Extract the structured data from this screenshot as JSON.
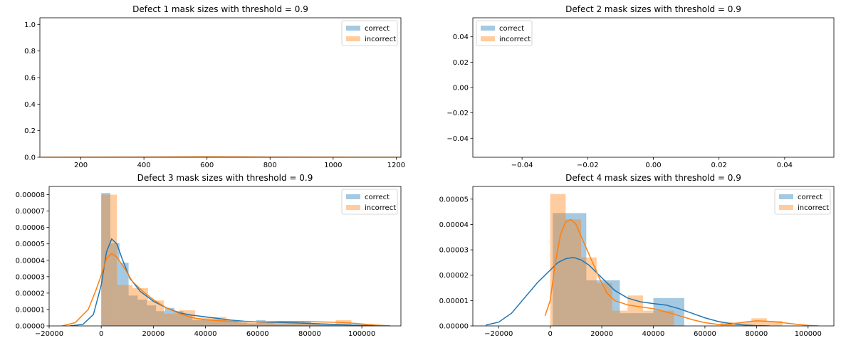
{
  "colors": {
    "correct": "#1f77b4",
    "incorrect": "#ff7f0e"
  },
  "legend": {
    "correct_label": "correct",
    "incorrect_label": "incorrect"
  },
  "chart_data": [
    {
      "type": "histogram",
      "title": "Defect 1 mask sizes with threshold = 0.9",
      "xlim": [
        70,
        1215
      ],
      "ylim": [
        0,
        1.05
      ],
      "xticks": [
        200,
        400,
        600,
        800,
        1000,
        1200
      ],
      "xtick_labels": [
        "200",
        "400",
        "600",
        "800",
        "1000",
        "1200"
      ],
      "yticks": [
        0.0,
        0.2,
        0.4,
        0.6,
        0.8,
        1.0
      ],
      "ytick_labels": [
        "0.0",
        "0.2",
        "0.4",
        "0.6",
        "0.8",
        "1.0"
      ],
      "legend_position": "top-right",
      "series": [
        {
          "name": "correct",
          "bins": [],
          "kde": []
        },
        {
          "name": "incorrect",
          "bins": [],
          "kde": [
            [
              75,
              0.0001
            ],
            [
              200,
              0.0005
            ],
            [
              400,
              0.0015
            ],
            [
              600,
              0.003
            ],
            [
              700,
              0.0025
            ],
            [
              800,
              0.0015
            ],
            [
              1000,
              0.0005
            ],
            [
              1215,
              0.0001
            ]
          ]
        }
      ]
    },
    {
      "type": "histogram",
      "title": "Defect 2 mask sizes with threshold = 0.9",
      "xlim": [
        -0.055,
        0.055
      ],
      "ylim": [
        -0.055,
        0.055
      ],
      "xticks": [
        -0.04,
        -0.02,
        0.0,
        0.02,
        0.04
      ],
      "xtick_labels": [
        "−0.04",
        "−0.02",
        "0.00",
        "0.02",
        "0.04"
      ],
      "yticks": [
        -0.04,
        -0.02,
        0.0,
        0.02,
        0.04
      ],
      "ytick_labels": [
        "−0.04",
        "−0.02",
        "0.00",
        "0.02",
        "0.04"
      ],
      "legend_position": "top-left",
      "series": [
        {
          "name": "correct",
          "bins": [],
          "kde": []
        },
        {
          "name": "incorrect",
          "bins": [],
          "kde": []
        }
      ]
    },
    {
      "type": "histogram",
      "title": "Defect 3 mask sizes with threshold = 0.9",
      "xlim": [
        -20000,
        115000
      ],
      "ylim": [
        0,
        8.5e-05
      ],
      "xticks": [
        -20000,
        0,
        20000,
        40000,
        60000,
        80000,
        100000
      ],
      "xtick_labels": [
        "−20000",
        "0",
        "20000",
        "40000",
        "60000",
        "80000",
        "100000"
      ],
      "yticks": [
        0,
        1e-05,
        2e-05,
        3e-05,
        4e-05,
        5e-05,
        6e-05,
        7e-05,
        8e-05
      ],
      "ytick_labels": [
        "0.00000",
        "0.00001",
        "0.00002",
        "0.00003",
        "0.00004",
        "0.00005",
        "0.00006",
        "0.00007",
        "0.00008"
      ],
      "legend_position": "top-right",
      "series": [
        {
          "name": "correct",
          "bins": [
            [
              0,
              3500,
              8.1e-05
            ],
            [
              3500,
              7000,
              5.05e-05
            ],
            [
              7000,
              10500,
              3.85e-05
            ],
            [
              10500,
              14000,
              1.85e-05
            ],
            [
              14000,
              17500,
              1.6e-05
            ],
            [
              17500,
              21000,
              1.25e-05
            ],
            [
              21000,
              24500,
              9e-06
            ],
            [
              24500,
              28000,
              1.1e-05
            ],
            [
              28000,
              31500,
              9e-06
            ],
            [
              31500,
              35000,
              7e-06
            ],
            [
              35000,
              38500,
              3.5e-06
            ],
            [
              38500,
              42000,
              4e-06
            ],
            [
              42000,
              45500,
              4e-06
            ],
            [
              45500,
              49000,
              3.5e-06
            ],
            [
              49000,
              52500,
              2.5e-06
            ],
            [
              52500,
              56000,
              2e-06
            ],
            [
              56000,
              59500,
              1.5e-06
            ],
            [
              59500,
              63000,
              3.5e-06
            ],
            [
              63000,
              66500,
              2e-06
            ],
            [
              66500,
              70000,
              1.5e-06
            ],
            [
              70000,
              73500,
              1.5e-06
            ],
            [
              73500,
              77000,
              1.5e-06
            ],
            [
              77000,
              80500,
              2.5e-06
            ],
            [
              80500,
              84000,
              1e-06
            ],
            [
              84000,
              87500,
              1e-06
            ],
            [
              87500,
              91000,
              1e-06
            ],
            [
              91000,
              94500,
              1e-06
            ]
          ],
          "kde": [
            [
              -12000,
              0
            ],
            [
              -7000,
              1e-06
            ],
            [
              -3000,
              7e-06
            ],
            [
              0,
              2.5e-05
            ],
            [
              2000,
              4.5e-05
            ],
            [
              4000,
              5.3e-05
            ],
            [
              6000,
              5e-05
            ],
            [
              8000,
              4.1e-05
            ],
            [
              11000,
              2.9e-05
            ],
            [
              15000,
              2.1e-05
            ],
            [
              20000,
              1.5e-05
            ],
            [
              25000,
              1.1e-05
            ],
            [
              30000,
              8e-06
            ],
            [
              35000,
              6.5e-06
            ],
            [
              40000,
              5.5e-06
            ],
            [
              45000,
              4.5e-06
            ],
            [
              50000,
              3.5e-06
            ],
            [
              55000,
              2.8e-06
            ],
            [
              60000,
              2.5e-06
            ],
            [
              65000,
              2.2e-06
            ],
            [
              70000,
              2e-06
            ],
            [
              75000,
              1.8e-06
            ],
            [
              80000,
              1.5e-06
            ],
            [
              85000,
              1.2e-06
            ],
            [
              90000,
              9e-07
            ],
            [
              95000,
              6e-07
            ],
            [
              100000,
              3e-07
            ],
            [
              105000,
              1e-07
            ],
            [
              110000,
              0
            ]
          ]
        },
        {
          "name": "incorrect",
          "bins": [
            [
              0,
              6000,
              8e-05
            ],
            [
              6000,
              12000,
              2.5e-05
            ],
            [
              12000,
              18000,
              2.3e-05
            ],
            [
              18000,
              24000,
              1.55e-05
            ],
            [
              24000,
              30000,
              7.5e-06
            ],
            [
              30000,
              36000,
              9.5e-06
            ],
            [
              36000,
              42000,
              5e-06
            ],
            [
              42000,
              48000,
              5.5e-06
            ],
            [
              48000,
              54000,
              2.5e-06
            ],
            [
              54000,
              60000,
              2e-06
            ],
            [
              60000,
              66000,
              2.5e-06
            ],
            [
              66000,
              72000,
              2.5e-06
            ],
            [
              72000,
              78000,
              2.5e-06
            ],
            [
              78000,
              84000,
              1.5e-06
            ],
            [
              84000,
              90000,
              5e-07
            ],
            [
              90000,
              96000,
              3.5e-06
            ],
            [
              96000,
              102000,
              5e-07
            ]
          ],
          "kde": [
            [
              -15000,
              0
            ],
            [
              -10000,
              2e-06
            ],
            [
              -5000,
              1e-05
            ],
            [
              -2000,
              2.2e-05
            ],
            [
              0,
              3.1e-05
            ],
            [
              2000,
              4.1e-05
            ],
            [
              4000,
              4.4e-05
            ],
            [
              6000,
              4.2e-05
            ],
            [
              9000,
              3.5e-05
            ],
            [
              12000,
              2.7e-05
            ],
            [
              16000,
              2.1e-05
            ],
            [
              20000,
              1.6e-05
            ],
            [
              25000,
              1.1e-05
            ],
            [
              30000,
              7.5e-06
            ],
            [
              35000,
              5e-06
            ],
            [
              40000,
              3.8e-06
            ],
            [
              45000,
              3.2e-06
            ],
            [
              50000,
              2.8e-06
            ],
            [
              55000,
              2.6e-06
            ],
            [
              60000,
              2.5e-06
            ],
            [
              65000,
              2.6e-06
            ],
            [
              70000,
              2.7e-06
            ],
            [
              75000,
              2.7e-06
            ],
            [
              80000,
              2.6e-06
            ],
            [
              85000,
              2.4e-06
            ],
            [
              90000,
              2.2e-06
            ],
            [
              95000,
              1.8e-06
            ],
            [
              100000,
              1.2e-06
            ],
            [
              105000,
              6e-07
            ],
            [
              111000,
              0
            ]
          ]
        }
      ]
    },
    {
      "type": "histogram",
      "title": "Defect 4 mask sizes with threshold = 0.9",
      "xlim": [
        -30000,
        110000
      ],
      "ylim": [
        0,
        5.5e-05
      ],
      "xticks": [
        -20000,
        0,
        20000,
        40000,
        60000,
        80000,
        100000
      ],
      "xtick_labels": [
        "−20000",
        "0",
        "20000",
        "40000",
        "60000",
        "80000",
        "100000"
      ],
      "yticks": [
        0,
        1e-05,
        2e-05,
        3e-05,
        4e-05,
        5e-05
      ],
      "ytick_labels": [
        "0.00000",
        "0.00001",
        "0.00002",
        "0.00003",
        "0.00004",
        "0.00005"
      ],
      "legend_position": "top-right",
      "series": [
        {
          "name": "correct",
          "bins": [
            [
              1000,
              14000,
              4.45e-05
            ],
            [
              14000,
              27000,
              1.8e-05
            ],
            [
              27000,
              40000,
              5e-06
            ],
            [
              40000,
              52000,
              1.1e-05
            ]
          ],
          "kde": [
            [
              -25000,
              3e-07
            ],
            [
              -20000,
              1.5e-06
            ],
            [
              -15000,
              5e-06
            ],
            [
              -10000,
              1.1e-05
            ],
            [
              -5000,
              1.7e-05
            ],
            [
              0,
              2.2e-05
            ],
            [
              3000,
              2.5e-05
            ],
            [
              6000,
              2.65e-05
            ],
            [
              9000,
              2.7e-05
            ],
            [
              12000,
              2.6e-05
            ],
            [
              15000,
              2.4e-05
            ],
            [
              20000,
              1.9e-05
            ],
            [
              25000,
              1.4e-05
            ],
            [
              30000,
              1.1e-05
            ],
            [
              35000,
              9.5e-06
            ],
            [
              40000,
              8.8e-06
            ],
            [
              45000,
              8.2e-06
            ],
            [
              50000,
              6.8e-06
            ],
            [
              55000,
              5e-06
            ],
            [
              60000,
              3.2e-06
            ],
            [
              65000,
              1.8e-06
            ],
            [
              70000,
              9e-07
            ],
            [
              75000,
              4e-07
            ],
            [
              80000,
              1e-07
            ],
            [
              85000,
              0
            ]
          ]
        },
        {
          "name": "incorrect",
          "bins": [
            [
              0,
              6000,
              5.2e-05
            ],
            [
              6000,
              12000,
              4.2e-05
            ],
            [
              12000,
              18000,
              2.7e-05
            ],
            [
              18000,
              24000,
              1.7e-05
            ],
            [
              24000,
              30000,
              6e-06
            ],
            [
              30000,
              36000,
              1.2e-05
            ],
            [
              36000,
              42000,
              6e-06
            ],
            [
              42000,
              48000,
              6e-06
            ],
            [
              48000,
              54000,
              0
            ],
            [
              54000,
              60000,
              0
            ],
            [
              60000,
              66000,
              0
            ],
            [
              66000,
              72000,
              1.5e-06
            ],
            [
              72000,
              78000,
              1.5e-06
            ],
            [
              78000,
              84000,
              3e-06
            ],
            [
              84000,
              90000,
              2e-06
            ]
          ],
          "kde": [
            [
              -2000,
              4e-06
            ],
            [
              0,
              1e-05
            ],
            [
              2000,
              2.5e-05
            ],
            [
              4000,
              3.6e-05
            ],
            [
              6000,
              4.1e-05
            ],
            [
              8000,
              4.2e-05
            ],
            [
              10000,
              4e-05
            ],
            [
              13000,
              3.3e-05
            ],
            [
              16000,
              2.6e-05
            ],
            [
              19000,
              1.9e-05
            ],
            [
              22000,
              1.3e-05
            ],
            [
              25000,
              1e-05
            ],
            [
              30000,
              8.3e-06
            ],
            [
              35000,
              7.5e-06
            ],
            [
              40000,
              6.8e-06
            ],
            [
              45000,
              5.5e-06
            ],
            [
              50000,
              4e-06
            ],
            [
              55000,
              2.5e-06
            ],
            [
              60000,
              1.3e-06
            ],
            [
              65000,
              6e-07
            ],
            [
              70000,
              6e-07
            ],
            [
              75000,
              1.5e-06
            ],
            [
              80000,
              2e-06
            ],
            [
              85000,
              1.8e-06
            ],
            [
              90000,
              1.3e-06
            ],
            [
              95000,
              7e-07
            ],
            [
              100000,
              2e-07
            ],
            [
              104000,
              0
            ]
          ]
        }
      ]
    }
  ]
}
